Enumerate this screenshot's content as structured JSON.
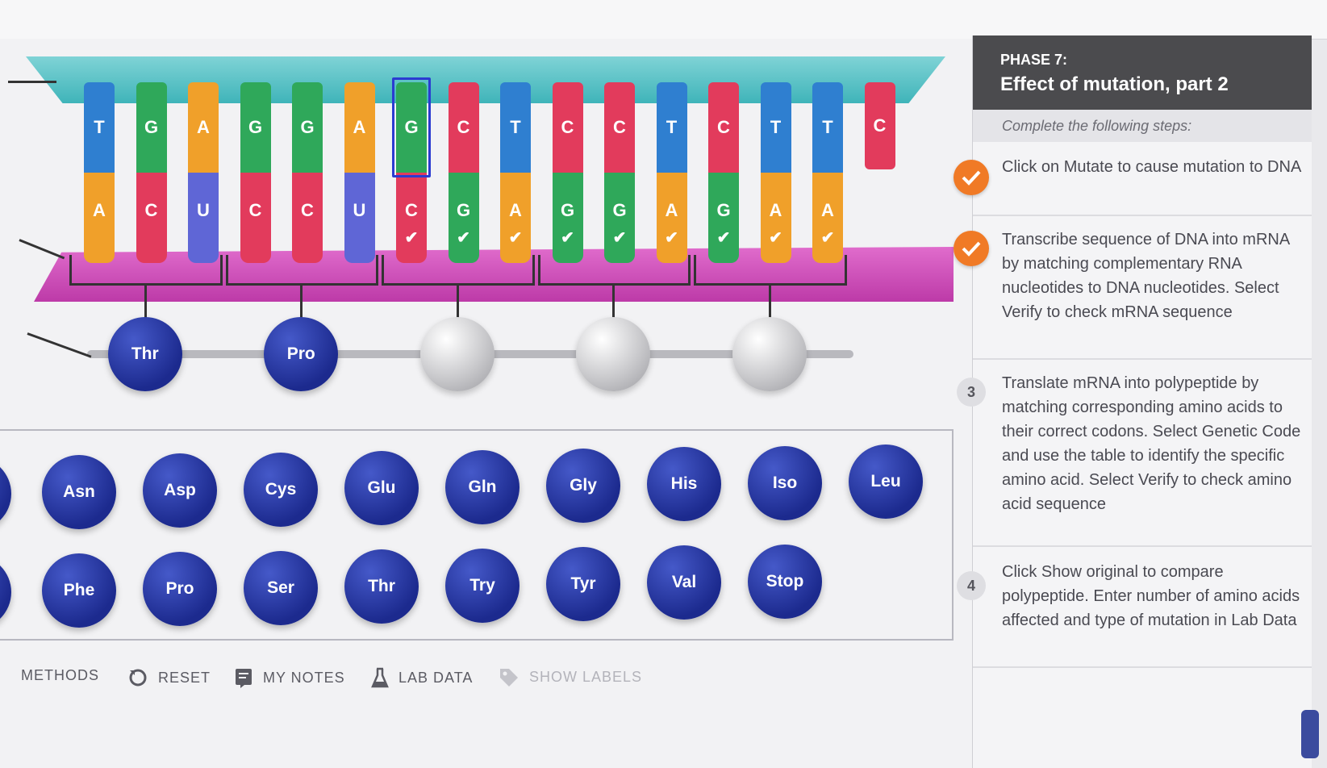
{
  "dna_model": {
    "dna_bases": [
      "T",
      "G",
      "A",
      "G",
      "G",
      "A",
      "G",
      "C",
      "T",
      "C",
      "C",
      "T",
      "C",
      "T",
      "T",
      "C"
    ],
    "rna_bases": [
      "A",
      "C",
      "U",
      "C",
      "C",
      "U",
      "C",
      "G",
      "A",
      "G",
      "G",
      "A",
      "G",
      "A",
      "A"
    ],
    "polypeptide": [
      "Thr",
      "Pro",
      "",
      "",
      ""
    ]
  },
  "base_colors": {
    "A": "#f0a02a",
    "T": "#2f7fd0",
    "G": "#2fa85a",
    "C": "#e23b5c",
    "U": "#5f66d6"
  },
  "amino_palette": {
    "row1": [
      "Asn",
      "Asp",
      "Cys",
      "Glu",
      "Gln",
      "Gly",
      "His",
      "Iso",
      "Leu"
    ],
    "row2": [
      "Phe",
      "Pro",
      "Ser",
      "Thr",
      "Try",
      "Tyr",
      "Val",
      "Stop"
    ]
  },
  "toolbar": {
    "methods": "METHODS",
    "reset": "RESET",
    "my_notes": "MY NOTES",
    "lab_data": "LAB DATA",
    "show_labels": "SHOW LABELS"
  },
  "panel": {
    "phase_label": "PHASE 7:",
    "phase_title": "Effect of mutation, part 2",
    "steps_intro": "Complete the following steps:",
    "steps": [
      {
        "status": "done",
        "number": "1",
        "text": "Click on Mutate to cause mutation to DNA"
      },
      {
        "status": "done",
        "number": "2",
        "text": "Transcribe sequence of DNA into mRNA by matching complementary RNA nucleotides to DNA nucleotides. Select Verify to check mRNA sequence"
      },
      {
        "status": "todo",
        "number": "3",
        "text": "Translate mRNA into polypeptide by matching corresponding amino acids to their correct codons. Select Genetic Code and use the table to identify the specific amino acid. Select Verify to check amino acid sequence"
      },
      {
        "status": "todo",
        "number": "4",
        "text": "Click Show original to compare polypeptide. Enter number of amino acids affected and type of mutation in Lab Data"
      }
    ]
  }
}
